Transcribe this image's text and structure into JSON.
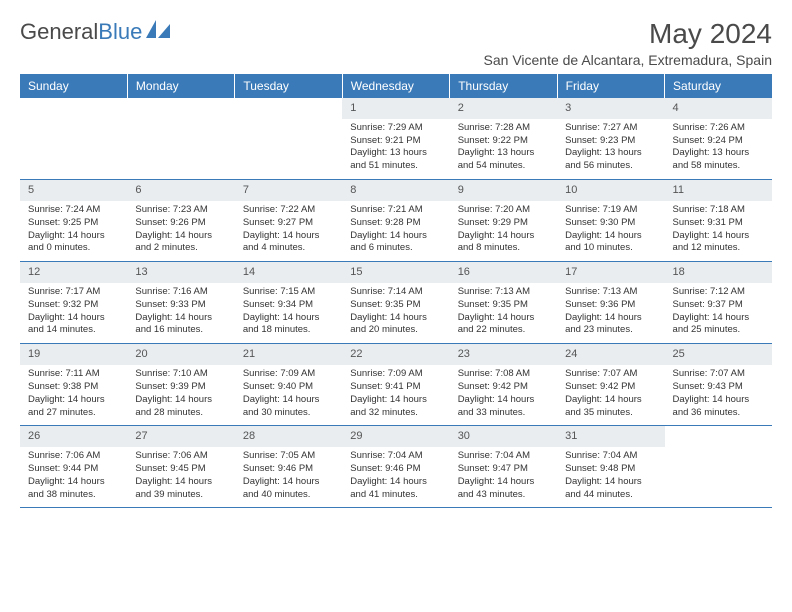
{
  "brand": {
    "part1": "General",
    "part2": "Blue"
  },
  "title": "May 2024",
  "location": "San Vicente de Alcantara, Extremadura, Spain",
  "colors": {
    "header_bg": "#3a7ab8",
    "header_text": "#ffffff",
    "daynum_bg": "#e9edf0",
    "border": "#3a7ab8",
    "text": "#333333",
    "title_text": "#4a4a4a"
  },
  "typography": {
    "month_fontsize": 28,
    "location_fontsize": 14,
    "weekday_fontsize": 12,
    "cell_fontsize": 9.5
  },
  "weekdays": [
    "Sunday",
    "Monday",
    "Tuesday",
    "Wednesday",
    "Thursday",
    "Friday",
    "Saturday"
  ],
  "weeks": [
    [
      {
        "n": "",
        "l1": "",
        "l2": "",
        "l3": "",
        "l4": ""
      },
      {
        "n": "",
        "l1": "",
        "l2": "",
        "l3": "",
        "l4": ""
      },
      {
        "n": "",
        "l1": "",
        "l2": "",
        "l3": "",
        "l4": ""
      },
      {
        "n": "1",
        "l1": "Sunrise: 7:29 AM",
        "l2": "Sunset: 9:21 PM",
        "l3": "Daylight: 13 hours",
        "l4": "and 51 minutes."
      },
      {
        "n": "2",
        "l1": "Sunrise: 7:28 AM",
        "l2": "Sunset: 9:22 PM",
        "l3": "Daylight: 13 hours",
        "l4": "and 54 minutes."
      },
      {
        "n": "3",
        "l1": "Sunrise: 7:27 AM",
        "l2": "Sunset: 9:23 PM",
        "l3": "Daylight: 13 hours",
        "l4": "and 56 minutes."
      },
      {
        "n": "4",
        "l1": "Sunrise: 7:26 AM",
        "l2": "Sunset: 9:24 PM",
        "l3": "Daylight: 13 hours",
        "l4": "and 58 minutes."
      }
    ],
    [
      {
        "n": "5",
        "l1": "Sunrise: 7:24 AM",
        "l2": "Sunset: 9:25 PM",
        "l3": "Daylight: 14 hours",
        "l4": "and 0 minutes."
      },
      {
        "n": "6",
        "l1": "Sunrise: 7:23 AM",
        "l2": "Sunset: 9:26 PM",
        "l3": "Daylight: 14 hours",
        "l4": "and 2 minutes."
      },
      {
        "n": "7",
        "l1": "Sunrise: 7:22 AM",
        "l2": "Sunset: 9:27 PM",
        "l3": "Daylight: 14 hours",
        "l4": "and 4 minutes."
      },
      {
        "n": "8",
        "l1": "Sunrise: 7:21 AM",
        "l2": "Sunset: 9:28 PM",
        "l3": "Daylight: 14 hours",
        "l4": "and 6 minutes."
      },
      {
        "n": "9",
        "l1": "Sunrise: 7:20 AM",
        "l2": "Sunset: 9:29 PM",
        "l3": "Daylight: 14 hours",
        "l4": "and 8 minutes."
      },
      {
        "n": "10",
        "l1": "Sunrise: 7:19 AM",
        "l2": "Sunset: 9:30 PM",
        "l3": "Daylight: 14 hours",
        "l4": "and 10 minutes."
      },
      {
        "n": "11",
        "l1": "Sunrise: 7:18 AM",
        "l2": "Sunset: 9:31 PM",
        "l3": "Daylight: 14 hours",
        "l4": "and 12 minutes."
      }
    ],
    [
      {
        "n": "12",
        "l1": "Sunrise: 7:17 AM",
        "l2": "Sunset: 9:32 PM",
        "l3": "Daylight: 14 hours",
        "l4": "and 14 minutes."
      },
      {
        "n": "13",
        "l1": "Sunrise: 7:16 AM",
        "l2": "Sunset: 9:33 PM",
        "l3": "Daylight: 14 hours",
        "l4": "and 16 minutes."
      },
      {
        "n": "14",
        "l1": "Sunrise: 7:15 AM",
        "l2": "Sunset: 9:34 PM",
        "l3": "Daylight: 14 hours",
        "l4": "and 18 minutes."
      },
      {
        "n": "15",
        "l1": "Sunrise: 7:14 AM",
        "l2": "Sunset: 9:35 PM",
        "l3": "Daylight: 14 hours",
        "l4": "and 20 minutes."
      },
      {
        "n": "16",
        "l1": "Sunrise: 7:13 AM",
        "l2": "Sunset: 9:35 PM",
        "l3": "Daylight: 14 hours",
        "l4": "and 22 minutes."
      },
      {
        "n": "17",
        "l1": "Sunrise: 7:13 AM",
        "l2": "Sunset: 9:36 PM",
        "l3": "Daylight: 14 hours",
        "l4": "and 23 minutes."
      },
      {
        "n": "18",
        "l1": "Sunrise: 7:12 AM",
        "l2": "Sunset: 9:37 PM",
        "l3": "Daylight: 14 hours",
        "l4": "and 25 minutes."
      }
    ],
    [
      {
        "n": "19",
        "l1": "Sunrise: 7:11 AM",
        "l2": "Sunset: 9:38 PM",
        "l3": "Daylight: 14 hours",
        "l4": "and 27 minutes."
      },
      {
        "n": "20",
        "l1": "Sunrise: 7:10 AM",
        "l2": "Sunset: 9:39 PM",
        "l3": "Daylight: 14 hours",
        "l4": "and 28 minutes."
      },
      {
        "n": "21",
        "l1": "Sunrise: 7:09 AM",
        "l2": "Sunset: 9:40 PM",
        "l3": "Daylight: 14 hours",
        "l4": "and 30 minutes."
      },
      {
        "n": "22",
        "l1": "Sunrise: 7:09 AM",
        "l2": "Sunset: 9:41 PM",
        "l3": "Daylight: 14 hours",
        "l4": "and 32 minutes."
      },
      {
        "n": "23",
        "l1": "Sunrise: 7:08 AM",
        "l2": "Sunset: 9:42 PM",
        "l3": "Daylight: 14 hours",
        "l4": "and 33 minutes."
      },
      {
        "n": "24",
        "l1": "Sunrise: 7:07 AM",
        "l2": "Sunset: 9:42 PM",
        "l3": "Daylight: 14 hours",
        "l4": "and 35 minutes."
      },
      {
        "n": "25",
        "l1": "Sunrise: 7:07 AM",
        "l2": "Sunset: 9:43 PM",
        "l3": "Daylight: 14 hours",
        "l4": "and 36 minutes."
      }
    ],
    [
      {
        "n": "26",
        "l1": "Sunrise: 7:06 AM",
        "l2": "Sunset: 9:44 PM",
        "l3": "Daylight: 14 hours",
        "l4": "and 38 minutes."
      },
      {
        "n": "27",
        "l1": "Sunrise: 7:06 AM",
        "l2": "Sunset: 9:45 PM",
        "l3": "Daylight: 14 hours",
        "l4": "and 39 minutes."
      },
      {
        "n": "28",
        "l1": "Sunrise: 7:05 AM",
        "l2": "Sunset: 9:46 PM",
        "l3": "Daylight: 14 hours",
        "l4": "and 40 minutes."
      },
      {
        "n": "29",
        "l1": "Sunrise: 7:04 AM",
        "l2": "Sunset: 9:46 PM",
        "l3": "Daylight: 14 hours",
        "l4": "and 41 minutes."
      },
      {
        "n": "30",
        "l1": "Sunrise: 7:04 AM",
        "l2": "Sunset: 9:47 PM",
        "l3": "Daylight: 14 hours",
        "l4": "and 43 minutes."
      },
      {
        "n": "31",
        "l1": "Sunrise: 7:04 AM",
        "l2": "Sunset: 9:48 PM",
        "l3": "Daylight: 14 hours",
        "l4": "and 44 minutes."
      },
      {
        "n": "",
        "l1": "",
        "l2": "",
        "l3": "",
        "l4": ""
      }
    ]
  ]
}
